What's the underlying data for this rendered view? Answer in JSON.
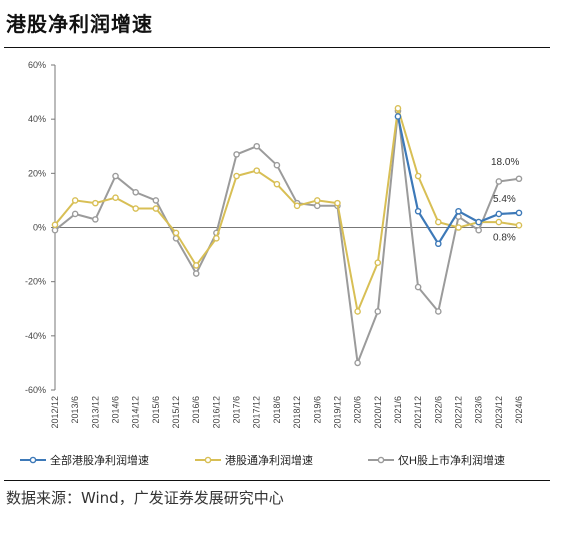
{
  "page": {
    "title": "港股净利润增速",
    "source": "数据来源：Wind，广发证券发展研究中心"
  },
  "chart_data": {
    "type": "line",
    "categories": [
      "2012/12",
      "2013/6",
      "2013/12",
      "2014/6",
      "2014/12",
      "2015/6",
      "2015/12",
      "2016/6",
      "2016/12",
      "2017/6",
      "2017/12",
      "2018/6",
      "2018/12",
      "2019/6",
      "2019/12",
      "2020/6",
      "2020/12",
      "2021/6",
      "2021/12",
      "2022/6",
      "2022/12",
      "2023/6",
      "2023/12",
      "2024/6"
    ],
    "ylim": [
      -60,
      60
    ],
    "ytick_values": [
      -60,
      -40,
      -20,
      0,
      20,
      40,
      60
    ],
    "ytick_labels": [
      "-60%",
      "-40%",
      "-20%",
      "0%",
      "20%",
      "40%",
      "60%"
    ],
    "grid": false,
    "legend_position": "bottom",
    "series": [
      {
        "name": "全部港股净利润增速",
        "color": "#3d79b8",
        "values": [
          null,
          null,
          null,
          null,
          null,
          null,
          null,
          null,
          null,
          null,
          null,
          null,
          null,
          null,
          null,
          null,
          null,
          41,
          6,
          -6,
          6,
          2,
          5,
          5.4
        ]
      },
      {
        "name": "港股通净利润增速",
        "color": "#d8bf55",
        "values": [
          1,
          10,
          9,
          11,
          7,
          7,
          -2,
          -14,
          -4,
          19,
          21,
          16,
          8,
          10,
          9,
          -31,
          -13,
          44,
          19,
          2,
          0,
          2,
          2,
          0.8
        ]
      },
      {
        "name": "仅H股上市净利润增速",
        "color": "#9b9b9b",
        "values": [
          -1,
          5,
          3,
          19,
          13,
          10,
          -4,
          -17,
          -2,
          27,
          30,
          23,
          9,
          8,
          8,
          -50,
          -31,
          43,
          -22,
          -31,
          4,
          -1,
          17,
          18
        ]
      }
    ],
    "annotations": [
      {
        "text": "18.0%",
        "series": 2,
        "index": 23
      },
      {
        "text": "5.4%",
        "series": 0,
        "index": 23
      },
      {
        "text": "0.8%",
        "series": 1,
        "index": 23
      }
    ]
  }
}
